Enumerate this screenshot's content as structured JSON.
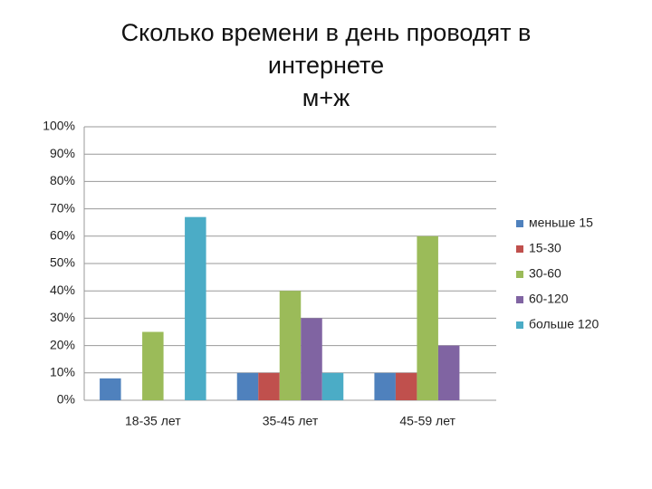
{
  "chart_data": {
    "type": "bar",
    "title": "Сколько времени в день проводят в интернете",
    "subtitle": "м+ж",
    "categories": [
      "18-35 лет",
      "35-45 лет",
      "45-59 лет"
    ],
    "series": [
      {
        "name": "меньше 15",
        "color": "#4f81bd",
        "values": [
          8,
          10,
          10
        ]
      },
      {
        "name": "15-30",
        "color": "#c0504d",
        "values": [
          0,
          10,
          10
        ]
      },
      {
        "name": "30-60",
        "color": "#9bbb59",
        "values": [
          25,
          40,
          60
        ]
      },
      {
        "name": "60-120",
        "color": "#8064a2",
        "values": [
          0,
          30,
          20
        ]
      },
      {
        "name": "больше 120",
        "color": "#4bacc6",
        "values": [
          67,
          10,
          0
        ]
      }
    ],
    "ylim": [
      0,
      100
    ],
    "yticks": [
      {
        "value": 0,
        "label": "0%"
      },
      {
        "value": 10,
        "label": "10%"
      },
      {
        "value": 20,
        "label": "20%"
      },
      {
        "value": 30,
        "label": "30%"
      },
      {
        "value": 40,
        "label": "40%"
      },
      {
        "value": 50,
        "label": "50%"
      },
      {
        "value": 60,
        "label": "60%"
      },
      {
        "value": 70,
        "label": "70%"
      },
      {
        "value": 80,
        "label": "80%"
      },
      {
        "value": 90,
        "label": "90%"
      },
      {
        "value": 100,
        "label": "100%"
      }
    ],
    "grid": true,
    "legend": "right"
  }
}
